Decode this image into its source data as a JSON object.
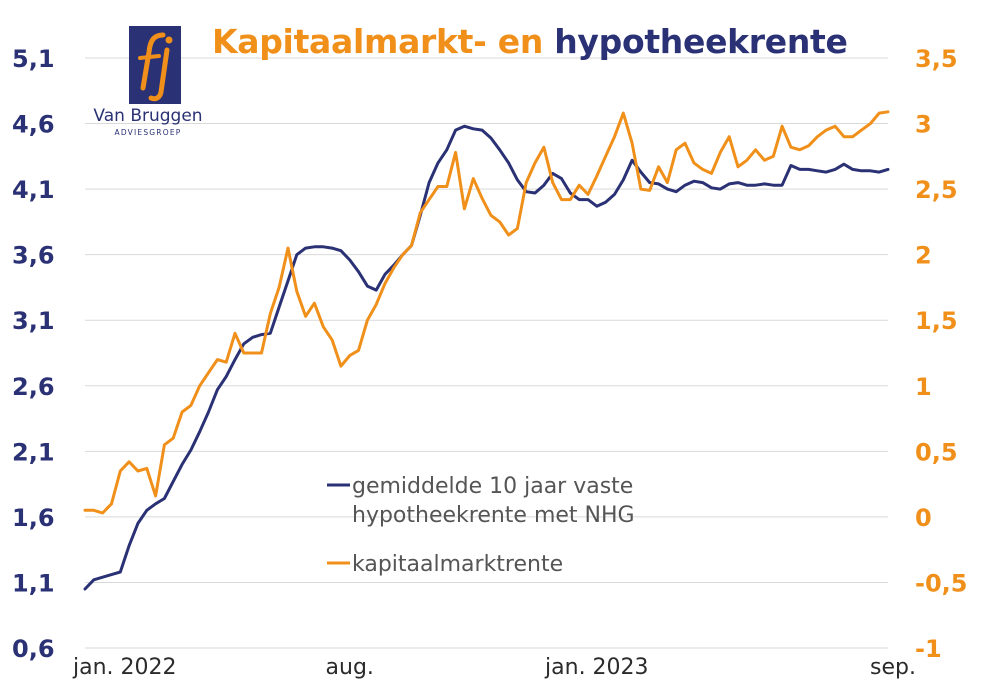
{
  "colors": {
    "navy": "#2a3174",
    "orange": "#f0901a",
    "grid": "#d9d9d9"
  },
  "logo": {
    "icon": "fj-monogram-icon",
    "name": "Van Bruggen",
    "sub": "ADVIESGROEP"
  },
  "chart_data": {
    "type": "line",
    "title_part1": "Kapitaalmarkt- en",
    "title_part2": "hypotheekrente",
    "x_ticks": [
      {
        "label": "jan. 2022",
        "index": 0
      },
      {
        "label": "aug.",
        "index": 30
      },
      {
        "label": "jan. 2023",
        "index": 58
      },
      {
        "label": "sep.",
        "index": 92
      }
    ],
    "y_left": {
      "min": 0.6,
      "max": 5.1,
      "ticks": [
        "5,1",
        "4,6",
        "4,1",
        "3,6",
        "3,1",
        "2,6",
        "2,1",
        "1,6",
        "1,1",
        "0,6"
      ]
    },
    "y_right": {
      "min": -1,
      "max": 3.5,
      "ticks": [
        "3,5",
        "3",
        "2,5",
        "2",
        "1,5",
        "1",
        "0,5",
        "0",
        "-0,5",
        "-1"
      ]
    },
    "grid": true,
    "legend": [
      {
        "line1": "gemiddelde 10 jaar vaste",
        "line2": "hypotheekrente met NHG",
        "color": "#2a3174"
      },
      {
        "line1": "kapitaalmarktrente",
        "line2": "",
        "color": "#f0901a"
      }
    ],
    "series": [
      {
        "name": "gemiddelde 10 jaar vaste hypotheekrente met NHG",
        "axis": "left",
        "color": "#2a3174",
        "values": [
          1.05,
          1.12,
          1.14,
          1.16,
          1.18,
          1.38,
          1.55,
          1.65,
          1.7,
          1.74,
          1.87,
          2.0,
          2.11,
          2.25,
          2.4,
          2.57,
          2.67,
          2.8,
          2.92,
          2.97,
          2.99,
          3.0,
          3.2,
          3.4,
          3.6,
          3.65,
          3.66,
          3.66,
          3.65,
          3.63,
          3.56,
          3.47,
          3.36,
          3.33,
          3.45,
          3.52,
          3.6,
          3.67,
          3.9,
          4.15,
          4.3,
          4.4,
          4.55,
          4.58,
          4.56,
          4.55,
          4.49,
          4.4,
          4.3,
          4.17,
          4.08,
          4.07,
          4.13,
          4.22,
          4.18,
          4.07,
          4.02,
          4.02,
          3.97,
          4.0,
          4.06,
          4.17,
          4.32,
          4.23,
          4.15,
          4.14,
          4.1,
          4.08,
          4.13,
          4.16,
          4.15,
          4.11,
          4.1,
          4.14,
          4.15,
          4.13,
          4.13,
          4.14,
          4.13,
          4.13,
          4.28,
          4.25,
          4.25,
          4.24,
          4.23,
          4.25,
          4.29,
          4.25,
          4.24,
          4.24,
          4.23,
          4.25
        ]
      },
      {
        "name": "kapitaalmarktrente",
        "axis": "right",
        "color": "#f0901a",
        "values": [
          0.05,
          0.05,
          0.03,
          0.1,
          0.35,
          0.42,
          0.35,
          0.37,
          0.16,
          0.55,
          0.6,
          0.8,
          0.85,
          1.0,
          1.1,
          1.2,
          1.18,
          1.4,
          1.25,
          1.25,
          1.25,
          1.55,
          1.75,
          2.05,
          1.72,
          1.53,
          1.63,
          1.45,
          1.35,
          1.15,
          1.23,
          1.27,
          1.5,
          1.62,
          1.78,
          1.9,
          2.0,
          2.07,
          2.32,
          2.42,
          2.52,
          2.52,
          2.78,
          2.35,
          2.58,
          2.43,
          2.3,
          2.25,
          2.15,
          2.2,
          2.55,
          2.7,
          2.82,
          2.55,
          2.42,
          2.42,
          2.53,
          2.46,
          2.6,
          2.75,
          2.9,
          3.08,
          2.85,
          2.5,
          2.49,
          2.67,
          2.55,
          2.8,
          2.85,
          2.7,
          2.65,
          2.62,
          2.78,
          2.9,
          2.67,
          2.72,
          2.8,
          2.72,
          2.75,
          2.98,
          2.82,
          2.8,
          2.83,
          2.9,
          2.95,
          2.98,
          2.9,
          2.9,
          2.95,
          3.0,
          3.08,
          3.09
        ]
      }
    ]
  }
}
